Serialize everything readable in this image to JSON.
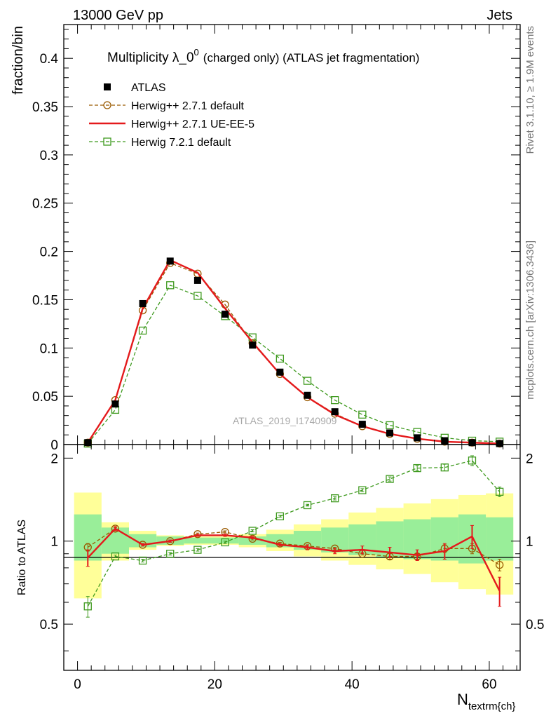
{
  "header": {
    "left": "13000 GeV pp",
    "right": "Jets"
  },
  "side_text": {
    "rivet": "Rivet 3.1.10, ≥ 1.9M events",
    "mcplots": "mcplots.cern.ch [arXiv:1306.3436]"
  },
  "chart_data": [
    {
      "type": "line",
      "title_main": "Multiplicity λ_0",
      "title_sup": "0",
      "title_rest": "(charged only) (ATLAS jet fragmentation)",
      "ylabel": "fraction/bin",
      "watermark": "ATLAS_2019_I1740909",
      "ylim": [
        0,
        0.435
      ],
      "yticks": [
        0,
        0.05,
        0.1,
        0.15,
        0.2,
        0.25,
        0.3,
        0.35,
        0.4
      ],
      "ytick_labels": [
        "0",
        "0.05",
        "0.1",
        "0.15",
        "0.2",
        "0.25",
        "0.3",
        "0.35",
        "0.4"
      ],
      "x": [
        1.5,
        5.5,
        9.5,
        13.5,
        17.5,
        21.5,
        25.5,
        29.5,
        33.5,
        37.5,
        41.5,
        45.5,
        49.5,
        53.5,
        57.5,
        61.5
      ],
      "series": [
        {
          "name": "ATLAS",
          "color": "#000000",
          "marker": "square-filled",
          "values": [
            0.002,
            0.042,
            0.146,
            0.19,
            0.17,
            0.135,
            0.103,
            0.075,
            0.051,
            0.034,
            0.021,
            0.012,
            0.007,
            0.004,
            0.002,
            0.001
          ]
        },
        {
          "name": "Herwig++ 2.7.1 default",
          "color": "#9a5a00",
          "marker": "circle-open",
          "values": [
            0.002,
            0.046,
            0.139,
            0.188,
            0.177,
            0.145,
            0.105,
            0.073,
            0.049,
            0.032,
            0.019,
            0.011,
            0.006,
            0.003,
            0.002,
            0.001
          ]
        },
        {
          "name": "Herwig++ 2.7.1 UE-EE-5",
          "color": "#e41a1c",
          "marker": "none",
          "values": [
            0.002,
            0.046,
            0.141,
            0.191,
            0.178,
            0.141,
            0.106,
            0.073,
            0.049,
            0.031,
            0.019,
            0.011,
            0.006,
            0.003,
            0.002,
            0.001
          ]
        },
        {
          "name": "Herwig 7.2.1 default",
          "color": "#3f9a1f",
          "marker": "square-open",
          "values": [
            0.001,
            0.036,
            0.118,
            0.165,
            0.154,
            0.133,
            0.111,
            0.089,
            0.066,
            0.046,
            0.031,
            0.02,
            0.013,
            0.007,
            0.004,
            0.003
          ]
        }
      ]
    },
    {
      "type": "line",
      "ylabel": "Ratio to ATLAS",
      "xlabel_main": "N",
      "xlabel_sub": "textrm{ch}",
      "xlim": [
        -2,
        64.5
      ],
      "xticks": [
        0,
        20,
        40,
        60
      ],
      "xtick_labels": [
        "0",
        "20",
        "40",
        "60"
      ],
      "ylim": [
        0.34,
        2.24
      ],
      "yticks": [
        0.5,
        1,
        2
      ],
      "ytick_labels": [
        "0.5",
        "1",
        "2"
      ],
      "bands": {
        "x_edges": [
          -0.5,
          3.5,
          7.5,
          11.5,
          15.5,
          19.5,
          23.5,
          27.5,
          31.5,
          35.5,
          39.5,
          43.5,
          47.5,
          51.5,
          55.5,
          59.5,
          63.5
        ],
        "stat_lo": [
          0.85,
          0.9,
          0.95,
          0.97,
          0.98,
          0.98,
          0.97,
          0.95,
          0.93,
          0.91,
          0.89,
          0.87,
          0.86,
          0.85,
          0.83,
          0.85
        ],
        "stat_hi": [
          1.25,
          1.12,
          1.06,
          1.04,
          1.03,
          1.03,
          1.04,
          1.06,
          1.09,
          1.12,
          1.15,
          1.18,
          1.2,
          1.22,
          1.25,
          1.22
        ],
        "syst_lo": [
          0.62,
          0.85,
          0.93,
          0.96,
          0.97,
          0.97,
          0.95,
          0.92,
          0.88,
          0.85,
          0.82,
          0.79,
          0.76,
          0.71,
          0.67,
          0.64
        ],
        "syst_hi": [
          1.5,
          1.17,
          1.09,
          1.05,
          1.04,
          1.04,
          1.06,
          1.1,
          1.15,
          1.2,
          1.27,
          1.32,
          1.37,
          1.42,
          1.47,
          1.49
        ],
        "stat_color": "#99ee99",
        "syst_color": "#ffff99"
      },
      "x": [
        1.5,
        5.5,
        9.5,
        13.5,
        17.5,
        21.5,
        25.5,
        29.5,
        33.5,
        37.5,
        41.5,
        45.5,
        49.5,
        53.5,
        57.5,
        61.5
      ],
      "series": [
        {
          "name": "Herwig++ 2.7.1 default",
          "color": "#9a5a00",
          "marker": "circle-open",
          "values": [
            0.95,
            1.11,
            0.97,
            1.0,
            1.06,
            1.08,
            1.02,
            0.98,
            0.96,
            0.94,
            0.9,
            0.88,
            0.88,
            0.94,
            0.94,
            0.82
          ],
          "errors": [
            0.03,
            0.01,
            0.01,
            0.01,
            0.01,
            0.01,
            0.01,
            0.01,
            0.01,
            0.01,
            0.01,
            0.02,
            0.02,
            0.03,
            0.04,
            0.04
          ]
        },
        {
          "name": "Herwig++ 2.7.1 UE-EE-5",
          "color": "#e41a1c",
          "marker": "none",
          "values": [
            0.87,
            1.11,
            0.97,
            1.0,
            1.05,
            1.05,
            1.03,
            0.97,
            0.95,
            0.92,
            0.93,
            0.91,
            0.89,
            0.92,
            1.04,
            0.66
          ],
          "errors": [
            0.06,
            0.02,
            0.01,
            0.01,
            0.01,
            0.01,
            0.01,
            0.01,
            0.02,
            0.02,
            0.03,
            0.04,
            0.04,
            0.06,
            0.1,
            0.08
          ]
        },
        {
          "name": "Herwig 7.2.1 default",
          "color": "#3f9a1f",
          "marker": "square-open",
          "values": [
            0.58,
            0.88,
            0.85,
            0.9,
            0.93,
            0.99,
            1.09,
            1.23,
            1.35,
            1.43,
            1.53,
            1.68,
            1.84,
            1.85,
            1.96,
            1.51
          ],
          "errors": [
            0.05,
            0.01,
            0.01,
            0.01,
            0.01,
            0.01,
            0.01,
            0.01,
            0.01,
            0.02,
            0.02,
            0.03,
            0.04,
            0.05,
            0.08,
            0.06
          ]
        }
      ]
    }
  ]
}
